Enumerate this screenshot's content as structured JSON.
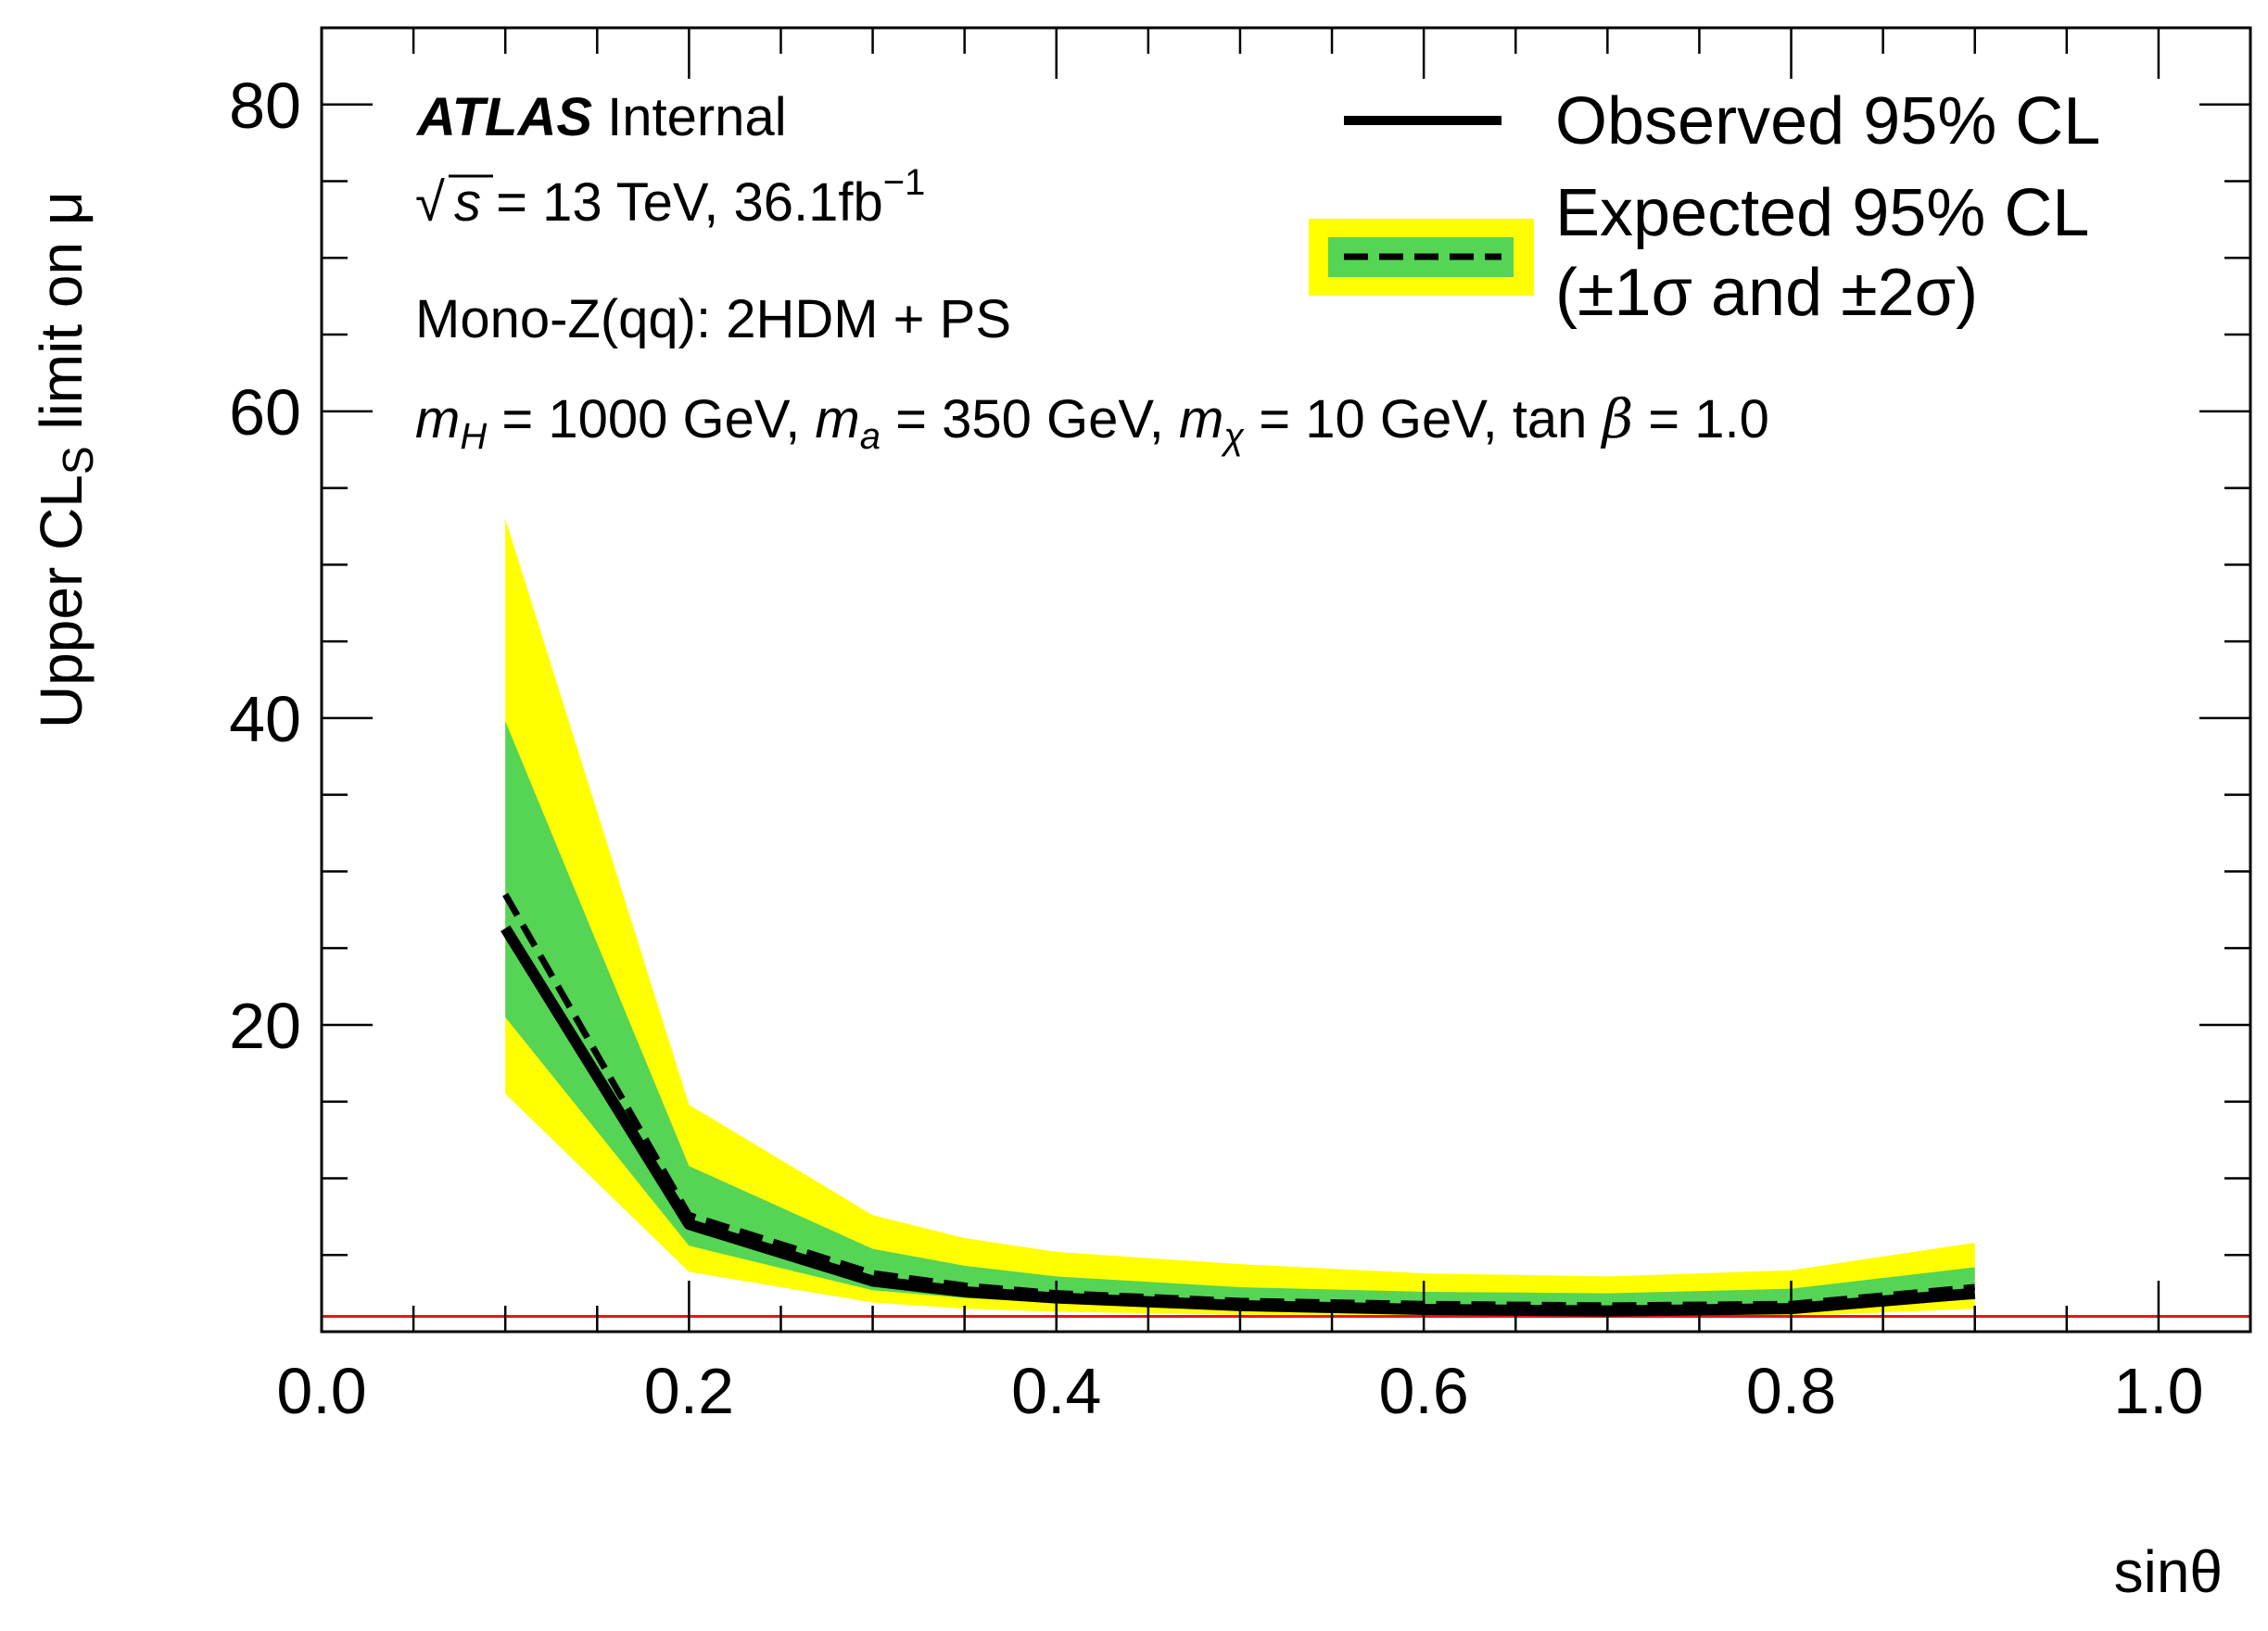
{
  "chart_data": {
    "type": "line",
    "xlabel": "sinθ",
    "ylabel_main": "Upper CL",
    "ylabel_sub": "S",
    "ylabel_tail": " limit on μ",
    "xlim": [
      0.0,
      1.05
    ],
    "ylim": [
      0,
      85
    ],
    "x_ticks": [
      0.0,
      0.2,
      0.4,
      0.6,
      0.8,
      1.0
    ],
    "x_tick_labels": [
      "0.0",
      "0.2",
      "0.4",
      "0.6",
      "0.8",
      "1.0"
    ],
    "y_ticks": [
      20,
      40,
      60,
      80
    ],
    "y_tick_labels": [
      "20",
      "40",
      "60",
      "80"
    ],
    "reference_line": {
      "y": 1.0,
      "color": "#e8141c"
    },
    "annotations": {
      "atlas_bold": "ATLAS",
      "atlas_rest": " Internal",
      "energy_sqrt": "√",
      "energy_s": "s",
      "energy_text": " = 13 TeV, 36.1fb",
      "energy_sup": "−1",
      "process": "Mono-Z(qq): 2HDM + PS",
      "params": "m_H = 1000 GeV, m_a = 350 GeV, m_χ = 10 GeV, tan β = 1.0",
      "params_parts": {
        "m": "m",
        "H": "H",
        "a": "a",
        "chi": "χ",
        "p1": " = 1000 GeV, ",
        "p2": " = 350 GeV, ",
        "p3": " = 10 GeV, tan ",
        "beta": "β",
        "p4": " = 1.0"
      }
    },
    "legend": {
      "observed": "Observed 95% CL",
      "expected_line1": "Expected 95% CL",
      "expected_line2": "(±1σ and ±2σ)",
      "placement": "top-right"
    },
    "colors": {
      "band_2sigma": "#ffff00",
      "band_1sigma": "#55d455",
      "observed": "#000000",
      "expected": "#000000"
    },
    "series": {
      "x": [
        0.1,
        0.2,
        0.3,
        0.35,
        0.4,
        0.5,
        0.6,
        0.7,
        0.8,
        0.9
      ],
      "observed": [
        26.3,
        7.0,
        3.3,
        2.6,
        2.2,
        1.7,
        1.45,
        1.35,
        1.5,
        2.5
      ],
      "expected": [
        28.5,
        7.6,
        3.8,
        3.0,
        2.5,
        2.0,
        1.8,
        1.7,
        1.8,
        2.9
      ],
      "minus_2sigma": [
        15.5,
        3.9,
        1.9,
        1.5,
        1.3,
        1.1,
        1.0,
        0.95,
        1.0,
        1.5
      ],
      "minus_1sigma": [
        20.5,
        5.6,
        2.7,
        2.2,
        1.9,
        1.5,
        1.4,
        1.3,
        1.4,
        2.1
      ],
      "plus_1sigma": [
        39.8,
        10.8,
        5.4,
        4.3,
        3.6,
        2.9,
        2.6,
        2.5,
        2.8,
        4.2
      ],
      "plus_2sigma": [
        53.0,
        14.8,
        7.6,
        6.1,
        5.2,
        4.4,
        3.8,
        3.6,
        4.0,
        5.8
      ]
    }
  }
}
